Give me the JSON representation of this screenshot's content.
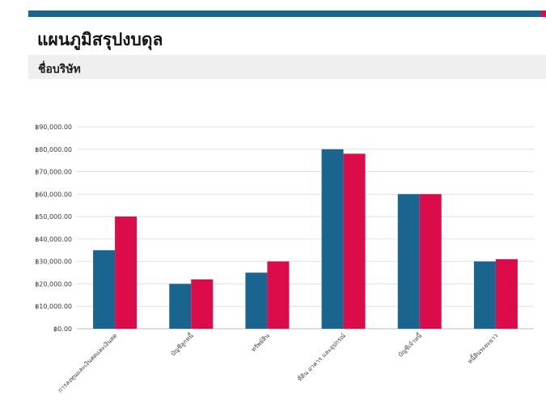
{
  "header": {
    "title": "แผนภูมิสรุปงบดุล",
    "subtitle": "ชื่อบริษัท"
  },
  "colors": {
    "accent_blue": "#1a6490",
    "accent_red": "#dc0b4a"
  },
  "chart_data": {
    "type": "bar",
    "categories": [
      "การลงทุนและเงินสดและเงินสด",
      "บัญชีลูกหนี้",
      "ทรัพย์สิน",
      "ที่ดิน อาคาร และอุปกรณ์",
      "บัญชีเจ้าหนี้",
      "หนี้สินระยะยาว"
    ],
    "series": [
      {
        "values": [
          35000,
          20000,
          25000,
          80000,
          60000,
          30000
        ],
        "color": "#1a6490"
      },
      {
        "values": [
          50000,
          22000,
          30000,
          78000,
          60000,
          31000
        ],
        "color": "#dc0b4a"
      }
    ],
    "ylim": [
      0,
      90000
    ],
    "yticks": [
      "฿0.00",
      "฿10,000.00",
      "฿20,000.00",
      "฿30,000.00",
      "฿40,000.00",
      "฿50,000.00",
      "฿60,000.00",
      "฿70,000.00",
      "฿80,000.00",
      "฿90,000.00"
    ],
    "grid": true
  }
}
